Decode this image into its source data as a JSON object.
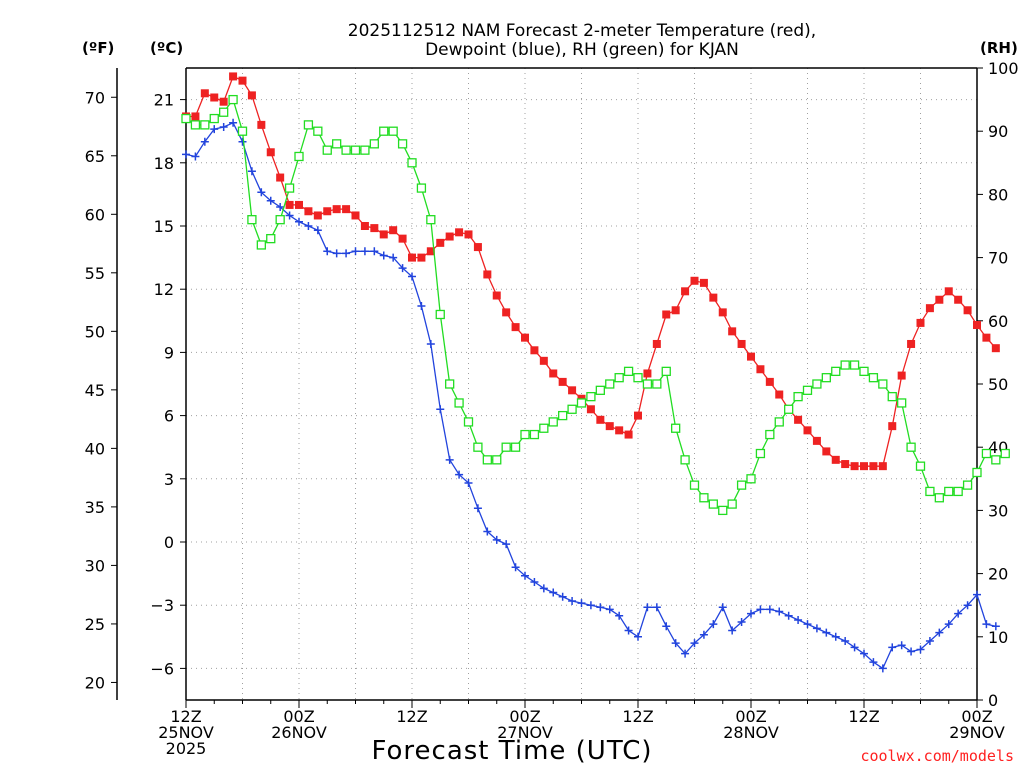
{
  "chart_data": {
    "type": "line",
    "title_lines": [
      "2025112512 NAM Forecast 2-meter Temperature (red),",
      "Dewpoint (blue), RH (green) for KJAN"
    ],
    "xlabel": "Forecast Time (UTC)",
    "credit": "coolwx.com/models",
    "credit_color": "#ff2020",
    "units": {
      "f": "(ºF)",
      "c": "(ºC)",
      "rh": "(RH)"
    },
    "x_range_hours": [
      0,
      84
    ],
    "x_ticks": [
      {
        "h": 0,
        "lines": [
          "12Z",
          "25NOV",
          "2025"
        ]
      },
      {
        "h": 12,
        "lines": [
          "00Z",
          "26NOV"
        ]
      },
      {
        "h": 24,
        "lines": [
          "12Z"
        ]
      },
      {
        "h": 36,
        "lines": [
          "00Z",
          "27NOV"
        ]
      },
      {
        "h": 48,
        "lines": [
          "12Z"
        ]
      },
      {
        "h": 60,
        "lines": [
          "00Z",
          "28NOV"
        ]
      },
      {
        "h": 72,
        "lines": [
          "12Z"
        ]
      },
      {
        "h": 84,
        "lines": [
          "00Z",
          "29NOV"
        ]
      }
    ],
    "y_celsius": {
      "range": [
        -7.5,
        22.5
      ],
      "ticks": [
        "21",
        "18",
        "15",
        "12",
        "9",
        "6",
        "3",
        "0",
        "−3",
        "−6"
      ]
    },
    "y_fahrenheit": {
      "ticks": [
        "70",
        "65",
        "60",
        "55",
        "50",
        "45",
        "40",
        "35",
        "30",
        "25",
        "20"
      ]
    },
    "y_rh": {
      "range": [
        0,
        100
      ],
      "ticks": [
        "100",
        "90",
        "80",
        "70",
        "60",
        "50",
        "40",
        "30",
        "20",
        "10",
        "0"
      ]
    },
    "series": [
      {
        "name": "Temperature",
        "axis": "celsius",
        "color": "#ee2222",
        "marker": "filled-square",
        "values": [
          20.2,
          20.2,
          21.3,
          21.1,
          20.9,
          22.1,
          21.9,
          21.2,
          19.8,
          18.5,
          17.3,
          16.0,
          16.0,
          15.7,
          15.5,
          15.7,
          15.8,
          15.8,
          15.5,
          15.0,
          14.9,
          14.6,
          14.8,
          14.4,
          13.5,
          13.5,
          13.8,
          14.2,
          14.5,
          14.7,
          14.6,
          14.0,
          12.7,
          11.7,
          10.9,
          10.2,
          9.7,
          9.1,
          8.6,
          8.0,
          7.6,
          7.2,
          6.8,
          6.3,
          5.8,
          5.5,
          5.3,
          5.1,
          6.0,
          8.0,
          9.4,
          10.8,
          11.0,
          11.9,
          12.4,
          12.3,
          11.6,
          10.9,
          10.0,
          9.4,
          8.8,
          8.2,
          7.6,
          7.0,
          6.3,
          5.8,
          5.3,
          4.8,
          4.3,
          3.9,
          3.7,
          3.6,
          3.6,
          3.6,
          3.6,
          5.5,
          7.9,
          9.4,
          10.4,
          11.1,
          11.5,
          11.9,
          11.5,
          11.0,
          10.3,
          9.7,
          9.2
        ]
      },
      {
        "name": "Dewpoint",
        "axis": "celsius",
        "color": "#2244dd",
        "marker": "plus",
        "values": [
          18.4,
          18.3,
          19.0,
          19.6,
          19.7,
          19.9,
          19.0,
          17.6,
          16.6,
          16.2,
          15.9,
          15.5,
          15.2,
          15.0,
          14.8,
          13.8,
          13.7,
          13.7,
          13.8,
          13.8,
          13.8,
          13.6,
          13.5,
          13.0,
          12.6,
          11.2,
          9.4,
          6.3,
          3.9,
          3.2,
          2.8,
          1.6,
          0.5,
          0.1,
          -0.1,
          -1.2,
          -1.6,
          -1.9,
          -2.2,
          -2.4,
          -2.6,
          -2.8,
          -2.9,
          -3.0,
          -3.1,
          -3.2,
          -3.5,
          -4.2,
          -4.5,
          -3.1,
          -3.1,
          -4.0,
          -4.8,
          -5.3,
          -4.8,
          -4.4,
          -3.9,
          -3.1,
          -4.2,
          -3.8,
          -3.4,
          -3.2,
          -3.2,
          -3.3,
          -3.5,
          -3.7,
          -3.9,
          -4.1,
          -4.3,
          -4.5,
          -4.7,
          -5.0,
          -5.3,
          -5.7,
          -6.0,
          -5.0,
          -4.9,
          -5.2,
          -5.1,
          -4.7,
          -4.3,
          -3.9,
          -3.4,
          -3.0,
          -2.5,
          -3.9,
          -4.0
        ]
      },
      {
        "name": "RH",
        "axis": "rh",
        "color": "#22dd22",
        "marker": "open-square",
        "values": [
          92,
          91,
          91,
          92,
          93,
          95,
          90,
          76,
          72,
          73,
          76,
          81,
          86,
          91,
          90,
          87,
          88,
          87,
          87,
          87,
          88,
          90,
          90,
          88,
          85,
          81,
          76,
          61,
          50,
          47,
          44,
          40,
          38,
          38,
          40,
          40,
          42,
          42,
          43,
          44,
          45,
          46,
          47,
          48,
          49,
          50,
          51,
          52,
          51,
          50,
          50,
          52,
          43,
          38,
          34,
          32,
          31,
          30,
          31,
          34,
          35,
          39,
          42,
          44,
          46,
          48,
          49,
          50,
          51,
          52,
          53,
          53,
          52,
          51,
          50,
          48,
          47,
          40,
          37,
          33,
          32,
          33,
          33,
          34,
          36,
          39,
          38,
          39
        ]
      }
    ]
  }
}
